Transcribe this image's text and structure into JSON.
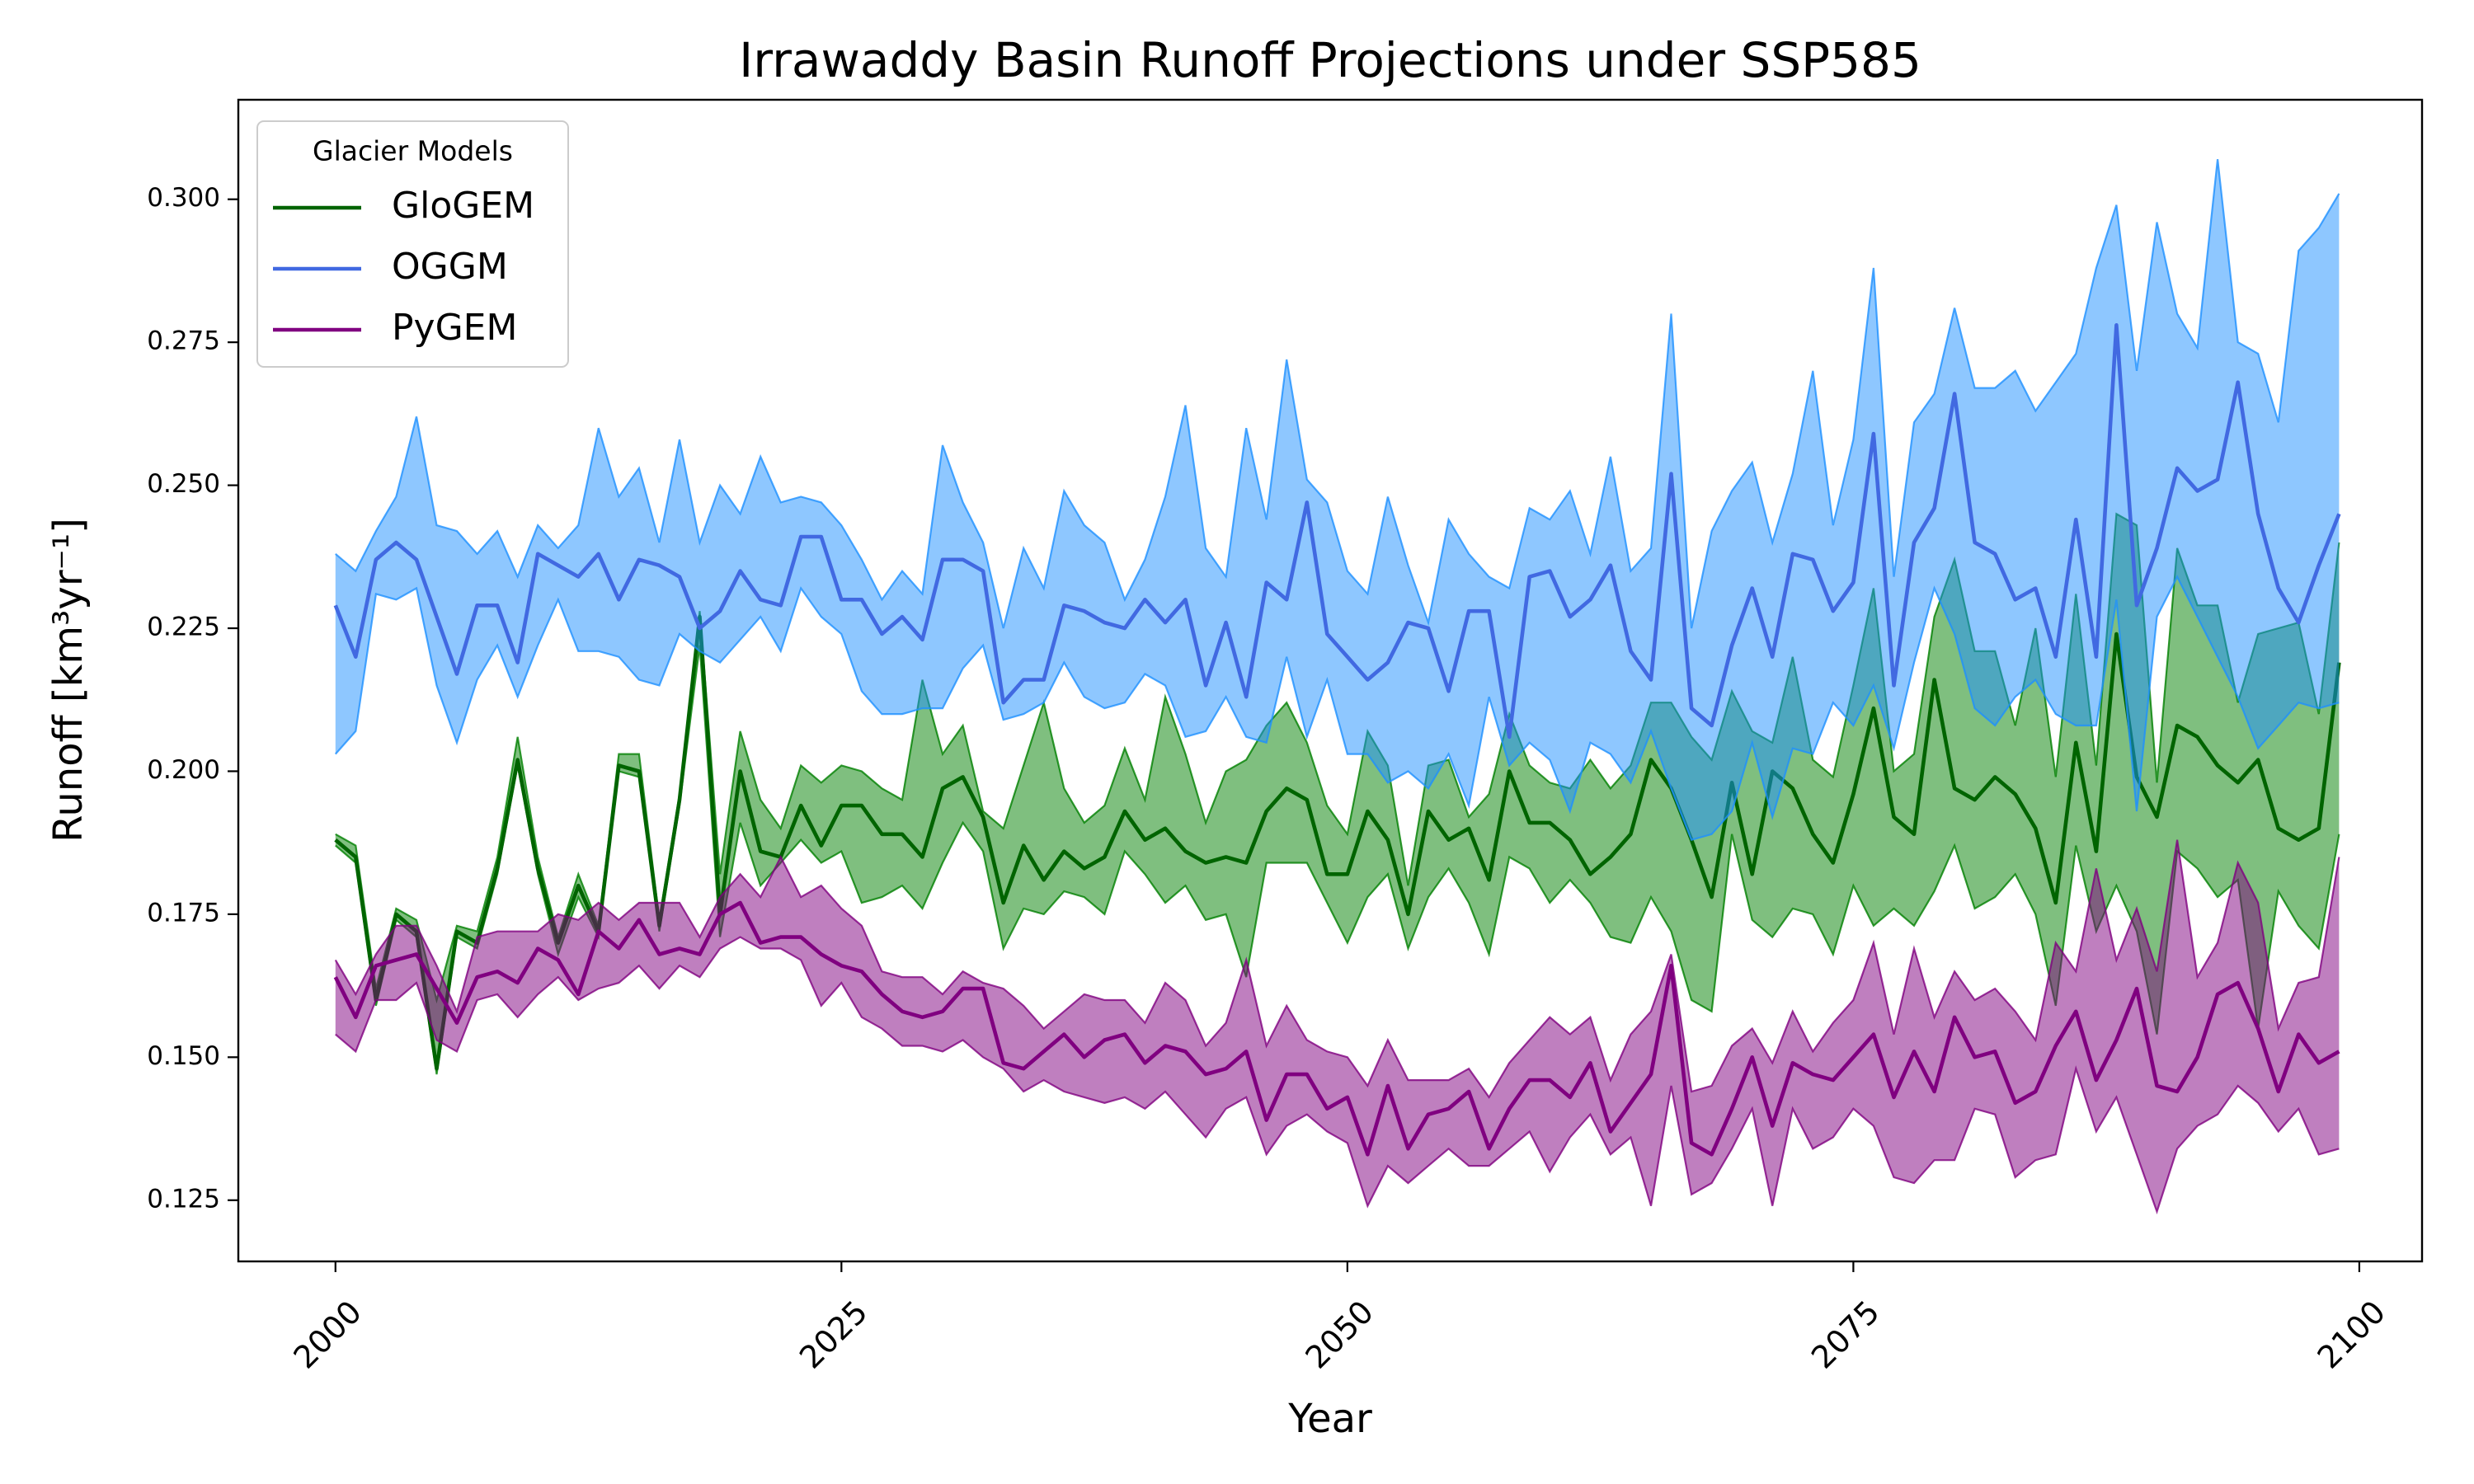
{
  "chart_data": {
    "type": "line-band",
    "title": "Irrawaddy Basin Runoff Projections under SSP585",
    "xlabel": "Year",
    "ylabel": "Runoff [km³yr⁻¹]",
    "legend_title": "Glacier Models",
    "legend_loc": "upper left",
    "fill_alpha": 0.5,
    "xlim": [
      1995.2,
      2103.1
    ],
    "xticks": [
      2000,
      2025,
      2050,
      2075,
      2100
    ],
    "ylim": [
      0.1143,
      0.3174
    ],
    "yticks": [
      {
        "value": 0.125,
        "label": "0.125"
      },
      {
        "value": 0.15,
        "label": "0.150"
      },
      {
        "value": 0.175,
        "label": "0.175"
      },
      {
        "value": 0.2,
        "label": "0.200"
      },
      {
        "value": 0.225,
        "label": "0.225"
      },
      {
        "value": 0.25,
        "label": "0.250"
      },
      {
        "value": 0.275,
        "label": "0.275"
      },
      {
        "value": 0.3,
        "label": "0.300"
      }
    ],
    "x": [
      2000,
      2001,
      2002,
      2003,
      2004,
      2005,
      2006,
      2007,
      2008,
      2009,
      2010,
      2011,
      2012,
      2013,
      2014,
      2015,
      2016,
      2017,
      2018,
      2019,
      2020,
      2021,
      2022,
      2023,
      2024,
      2025,
      2026,
      2027,
      2028,
      2029,
      2030,
      2031,
      2032,
      2033,
      2034,
      2035,
      2036,
      2037,
      2038,
      2039,
      2040,
      2041,
      2042,
      2043,
      2044,
      2045,
      2046,
      2047,
      2048,
      2049,
      2050,
      2051,
      2052,
      2053,
      2054,
      2055,
      2056,
      2057,
      2058,
      2059,
      2060,
      2061,
      2062,
      2063,
      2064,
      2065,
      2066,
      2067,
      2068,
      2069,
      2070,
      2071,
      2072,
      2073,
      2074,
      2075,
      2076,
      2077,
      2078,
      2079,
      2080,
      2081,
      2082,
      2083,
      2084,
      2085,
      2086,
      2087,
      2088,
      2089,
      2090,
      2091,
      2092,
      2093,
      2094,
      2095,
      2096,
      2097,
      2098,
      2099
    ],
    "series": [
      {
        "name": "GloGEM",
        "color": "#006400",
        "fill_color": "#008000",
        "values": [
          0.188,
          0.185,
          0.16,
          0.175,
          0.172,
          0.148,
          0.172,
          0.17,
          0.183,
          0.202,
          0.183,
          0.17,
          0.18,
          0.172,
          0.201,
          0.2,
          0.173,
          0.195,
          0.227,
          0.175,
          0.2,
          0.186,
          0.185,
          0.194,
          0.187,
          0.194,
          0.194,
          0.189,
          0.189,
          0.185,
          0.197,
          0.199,
          0.192,
          0.177,
          0.187,
          0.181,
          0.186,
          0.183,
          0.185,
          0.193,
          0.188,
          0.19,
          0.186,
          0.184,
          0.185,
          0.184,
          0.193,
          0.197,
          0.195,
          0.182,
          0.182,
          0.193,
          0.188,
          0.175,
          0.193,
          0.188,
          0.19,
          0.181,
          0.2,
          0.191,
          0.191,
          0.188,
          0.182,
          0.185,
          0.189,
          0.202,
          0.197,
          0.188,
          0.178,
          0.198,
          0.182,
          0.2,
          0.197,
          0.189,
          0.184,
          0.196,
          0.211,
          0.192,
          0.189,
          0.216,
          0.197,
          0.195,
          0.199,
          0.196,
          0.19,
          0.177,
          0.205,
          0.186,
          0.224,
          0.199,
          0.192,
          0.208,
          0.206,
          0.201,
          0.198,
          0.202,
          0.19,
          0.188,
          0.19,
          0.219
        ],
        "lower": [
          0.187,
          0.184,
          0.159,
          0.174,
          0.171,
          0.147,
          0.171,
          0.169,
          0.182,
          0.201,
          0.182,
          0.168,
          0.178,
          0.171,
          0.2,
          0.199,
          0.172,
          0.194,
          0.222,
          0.171,
          0.191,
          0.18,
          0.184,
          0.188,
          0.184,
          0.186,
          0.177,
          0.178,
          0.18,
          0.176,
          0.184,
          0.191,
          0.186,
          0.169,
          0.176,
          0.175,
          0.179,
          0.178,
          0.175,
          0.186,
          0.182,
          0.177,
          0.18,
          0.174,
          0.175,
          0.164,
          0.184,
          0.184,
          0.184,
          0.177,
          0.17,
          0.178,
          0.182,
          0.169,
          0.178,
          0.183,
          0.177,
          0.168,
          0.185,
          0.183,
          0.177,
          0.181,
          0.177,
          0.171,
          0.17,
          0.178,
          0.172,
          0.16,
          0.158,
          0.189,
          0.174,
          0.171,
          0.176,
          0.175,
          0.168,
          0.18,
          0.173,
          0.176,
          0.173,
          0.179,
          0.187,
          0.176,
          0.178,
          0.182,
          0.175,
          0.159,
          0.187,
          0.172,
          0.18,
          0.172,
          0.154,
          0.186,
          0.183,
          0.178,
          0.181,
          0.155,
          0.179,
          0.173,
          0.169,
          0.189
        ],
        "upper": [
          0.189,
          0.187,
          0.162,
          0.176,
          0.174,
          0.16,
          0.173,
          0.172,
          0.185,
          0.206,
          0.185,
          0.171,
          0.182,
          0.173,
          0.203,
          0.203,
          0.174,
          0.196,
          0.228,
          0.182,
          0.207,
          0.195,
          0.19,
          0.201,
          0.198,
          0.201,
          0.2,
          0.197,
          0.195,
          0.216,
          0.203,
          0.208,
          0.193,
          0.19,
          0.201,
          0.212,
          0.197,
          0.191,
          0.194,
          0.204,
          0.195,
          0.213,
          0.203,
          0.191,
          0.2,
          0.202,
          0.208,
          0.212,
          0.205,
          0.194,
          0.189,
          0.207,
          0.201,
          0.18,
          0.201,
          0.202,
          0.192,
          0.196,
          0.21,
          0.201,
          0.198,
          0.197,
          0.202,
          0.197,
          0.201,
          0.212,
          0.212,
          0.206,
          0.202,
          0.214,
          0.207,
          0.205,
          0.22,
          0.202,
          0.199,
          0.215,
          0.232,
          0.2,
          0.203,
          0.227,
          0.237,
          0.221,
          0.221,
          0.208,
          0.225,
          0.199,
          0.231,
          0.201,
          0.245,
          0.243,
          0.198,
          0.239,
          0.229,
          0.229,
          0.212,
          0.224,
          0.225,
          0.226,
          0.21,
          0.24
        ]
      },
      {
        "name": "OGGM",
        "color": "#4169e1",
        "fill_color": "#1e90ff",
        "values": [
          0.229,
          0.22,
          0.237,
          0.24,
          0.237,
          0.227,
          0.217,
          0.229,
          0.229,
          0.219,
          0.238,
          0.236,
          0.234,
          0.238,
          0.23,
          0.237,
          0.236,
          0.234,
          0.225,
          0.228,
          0.235,
          0.23,
          0.229,
          0.241,
          0.241,
          0.23,
          0.23,
          0.224,
          0.227,
          0.223,
          0.237,
          0.237,
          0.235,
          0.212,
          0.216,
          0.216,
          0.229,
          0.228,
          0.226,
          0.225,
          0.23,
          0.226,
          0.23,
          0.215,
          0.226,
          0.213,
          0.233,
          0.23,
          0.247,
          0.224,
          0.22,
          0.216,
          0.219,
          0.226,
          0.225,
          0.214,
          0.228,
          0.228,
          0.206,
          0.234,
          0.235,
          0.227,
          0.23,
          0.236,
          0.221,
          0.216,
          0.252,
          0.211,
          0.208,
          0.222,
          0.232,
          0.22,
          0.238,
          0.237,
          0.228,
          0.233,
          0.259,
          0.215,
          0.24,
          0.246,
          0.266,
          0.24,
          0.238,
          0.23,
          0.232,
          0.22,
          0.244,
          0.22,
          0.278,
          0.229,
          0.239,
          0.253,
          0.249,
          0.251,
          0.268,
          0.245,
          0.232,
          0.226,
          0.236,
          0.245
        ],
        "lower": [
          0.203,
          0.207,
          0.231,
          0.23,
          0.232,
          0.215,
          0.205,
          0.216,
          0.222,
          0.213,
          0.222,
          0.23,
          0.221,
          0.221,
          0.22,
          0.216,
          0.215,
          0.224,
          0.221,
          0.219,
          0.223,
          0.227,
          0.221,
          0.232,
          0.227,
          0.224,
          0.214,
          0.21,
          0.21,
          0.211,
          0.211,
          0.218,
          0.222,
          0.209,
          0.21,
          0.212,
          0.219,
          0.213,
          0.211,
          0.212,
          0.217,
          0.215,
          0.206,
          0.207,
          0.213,
          0.206,
          0.205,
          0.22,
          0.206,
          0.216,
          0.203,
          0.203,
          0.198,
          0.2,
          0.197,
          0.203,
          0.194,
          0.213,
          0.201,
          0.205,
          0.202,
          0.193,
          0.205,
          0.203,
          0.198,
          0.207,
          0.197,
          0.188,
          0.189,
          0.193,
          0.205,
          0.192,
          0.204,
          0.203,
          0.212,
          0.208,
          0.215,
          0.204,
          0.219,
          0.232,
          0.224,
          0.211,
          0.208,
          0.213,
          0.216,
          0.21,
          0.208,
          0.208,
          0.23,
          0.193,
          0.227,
          0.234,
          0.227,
          0.22,
          0.213,
          0.204,
          0.208,
          0.212,
          0.211,
          0.212
        ],
        "upper": [
          0.238,
          0.235,
          0.242,
          0.248,
          0.262,
          0.243,
          0.242,
          0.238,
          0.242,
          0.234,
          0.243,
          0.239,
          0.243,
          0.26,
          0.248,
          0.253,
          0.24,
          0.258,
          0.24,
          0.25,
          0.245,
          0.255,
          0.247,
          0.248,
          0.247,
          0.243,
          0.237,
          0.23,
          0.235,
          0.231,
          0.257,
          0.247,
          0.24,
          0.225,
          0.239,
          0.232,
          0.249,
          0.243,
          0.24,
          0.23,
          0.237,
          0.248,
          0.264,
          0.239,
          0.234,
          0.26,
          0.244,
          0.272,
          0.251,
          0.247,
          0.235,
          0.231,
          0.248,
          0.236,
          0.226,
          0.244,
          0.238,
          0.234,
          0.232,
          0.246,
          0.244,
          0.249,
          0.238,
          0.255,
          0.235,
          0.239,
          0.28,
          0.225,
          0.242,
          0.249,
          0.254,
          0.24,
          0.252,
          0.27,
          0.243,
          0.258,
          0.288,
          0.234,
          0.261,
          0.266,
          0.281,
          0.267,
          0.267,
          0.27,
          0.263,
          0.268,
          0.273,
          0.288,
          0.299,
          0.27,
          0.296,
          0.28,
          0.274,
          0.307,
          0.275,
          0.273,
          0.261,
          0.291,
          0.295,
          0.301
        ]
      },
      {
        "name": "PyGEM",
        "color": "#800080",
        "fill_color": "#800080",
        "values": [
          0.164,
          0.157,
          0.166,
          0.167,
          0.168,
          0.162,
          0.156,
          0.164,
          0.165,
          0.163,
          0.169,
          0.167,
          0.161,
          0.172,
          0.169,
          0.174,
          0.168,
          0.169,
          0.168,
          0.175,
          0.177,
          0.17,
          0.171,
          0.171,
          0.168,
          0.166,
          0.165,
          0.161,
          0.158,
          0.157,
          0.158,
          0.162,
          0.162,
          0.149,
          0.148,
          0.151,
          0.154,
          0.15,
          0.153,
          0.154,
          0.149,
          0.152,
          0.151,
          0.147,
          0.148,
          0.151,
          0.139,
          0.147,
          0.147,
          0.141,
          0.143,
          0.133,
          0.145,
          0.134,
          0.14,
          0.141,
          0.144,
          0.134,
          0.141,
          0.146,
          0.146,
          0.143,
          0.149,
          0.137,
          0.142,
          0.147,
          0.166,
          0.135,
          0.133,
          0.141,
          0.15,
          0.138,
          0.149,
          0.147,
          0.146,
          0.15,
          0.154,
          0.143,
          0.151,
          0.144,
          0.157,
          0.15,
          0.151,
          0.142,
          0.144,
          0.152,
          0.158,
          0.146,
          0.153,
          0.162,
          0.145,
          0.144,
          0.15,
          0.161,
          0.163,
          0.155,
          0.144,
          0.154,
          0.149,
          0.151
        ],
        "lower": [
          0.154,
          0.151,
          0.16,
          0.16,
          0.163,
          0.153,
          0.151,
          0.16,
          0.161,
          0.157,
          0.161,
          0.164,
          0.16,
          0.162,
          0.163,
          0.166,
          0.162,
          0.166,
          0.164,
          0.169,
          0.171,
          0.169,
          0.169,
          0.167,
          0.159,
          0.163,
          0.157,
          0.155,
          0.152,
          0.152,
          0.151,
          0.153,
          0.15,
          0.148,
          0.144,
          0.146,
          0.144,
          0.143,
          0.142,
          0.143,
          0.141,
          0.144,
          0.14,
          0.136,
          0.141,
          0.143,
          0.133,
          0.138,
          0.14,
          0.137,
          0.135,
          0.124,
          0.131,
          0.128,
          0.131,
          0.134,
          0.131,
          0.131,
          0.134,
          0.137,
          0.13,
          0.136,
          0.14,
          0.133,
          0.136,
          0.124,
          0.145,
          0.126,
          0.128,
          0.134,
          0.141,
          0.124,
          0.141,
          0.134,
          0.136,
          0.141,
          0.138,
          0.129,
          0.128,
          0.132,
          0.132,
          0.141,
          0.14,
          0.129,
          0.132,
          0.133,
          0.148,
          0.137,
          0.143,
          0.133,
          0.123,
          0.134,
          0.138,
          0.14,
          0.145,
          0.142,
          0.137,
          0.141,
          0.133,
          0.134
        ],
        "upper": [
          0.167,
          0.161,
          0.168,
          0.173,
          0.173,
          0.166,
          0.158,
          0.171,
          0.172,
          0.172,
          0.172,
          0.175,
          0.174,
          0.177,
          0.174,
          0.177,
          0.177,
          0.177,
          0.171,
          0.178,
          0.182,
          0.178,
          0.185,
          0.178,
          0.18,
          0.176,
          0.173,
          0.165,
          0.164,
          0.164,
          0.161,
          0.165,
          0.163,
          0.162,
          0.159,
          0.155,
          0.158,
          0.161,
          0.16,
          0.16,
          0.156,
          0.163,
          0.16,
          0.152,
          0.156,
          0.167,
          0.152,
          0.159,
          0.153,
          0.151,
          0.15,
          0.145,
          0.153,
          0.146,
          0.146,
          0.146,
          0.148,
          0.143,
          0.149,
          0.153,
          0.157,
          0.154,
          0.157,
          0.146,
          0.154,
          0.158,
          0.168,
          0.144,
          0.145,
          0.152,
          0.155,
          0.149,
          0.158,
          0.151,
          0.156,
          0.16,
          0.17,
          0.154,
          0.169,
          0.157,
          0.165,
          0.16,
          0.162,
          0.158,
          0.153,
          0.17,
          0.165,
          0.183,
          0.167,
          0.176,
          0.165,
          0.188,
          0.164,
          0.17,
          0.184,
          0.177,
          0.155,
          0.163,
          0.164,
          0.185
        ]
      }
    ]
  }
}
